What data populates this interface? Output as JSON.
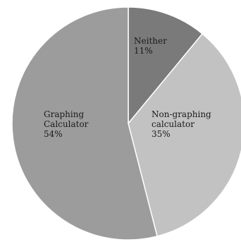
{
  "chart_data": {
    "type": "pie",
    "title": "",
    "slices": [
      {
        "label": "Neither",
        "value": 11,
        "value_text": "11%",
        "color": "#7a7a7a"
      },
      {
        "label": "Non-graphing calculator",
        "label_lines": [
          "Non-graphing",
          "calculator"
        ],
        "value": 35,
        "value_text": "35%",
        "color": "#c2c2c2"
      },
      {
        "label": "Graphing Calculator",
        "label_lines": [
          "Graphing",
          "Calculator"
        ],
        "value": 54,
        "value_text": "54%",
        "color": "#9c9c9c"
      }
    ],
    "legend": "none",
    "start_angle": "12 o'clock",
    "direction": "clockwise"
  }
}
